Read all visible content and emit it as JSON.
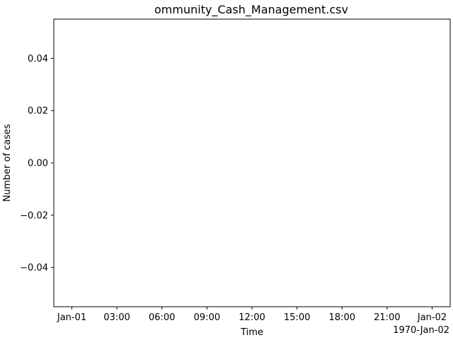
{
  "chart_data": {
    "type": "line",
    "title": "ommunity_Cash_Management.csv",
    "xlabel": "Time",
    "ylabel": "Number of cases",
    "x_offset_label": "1970-Jan-02",
    "x_ticks": [
      "Jan-01",
      "03:00",
      "06:00",
      "09:00",
      "12:00",
      "15:00",
      "18:00",
      "21:00",
      "Jan-02"
    ],
    "y_ticks": [
      "0.04",
      "0.02",
      "0.00",
      "−0.02",
      "−0.04"
    ],
    "y_tick_values": [
      0.04,
      0.02,
      0.0,
      -0.02,
      -0.04
    ],
    "ylim": [
      -0.055,
      0.055
    ],
    "xlim": [
      "1970-01-01 00:00",
      "1970-01-02 00:00"
    ],
    "series": [],
    "grid": false,
    "legend": "none"
  }
}
